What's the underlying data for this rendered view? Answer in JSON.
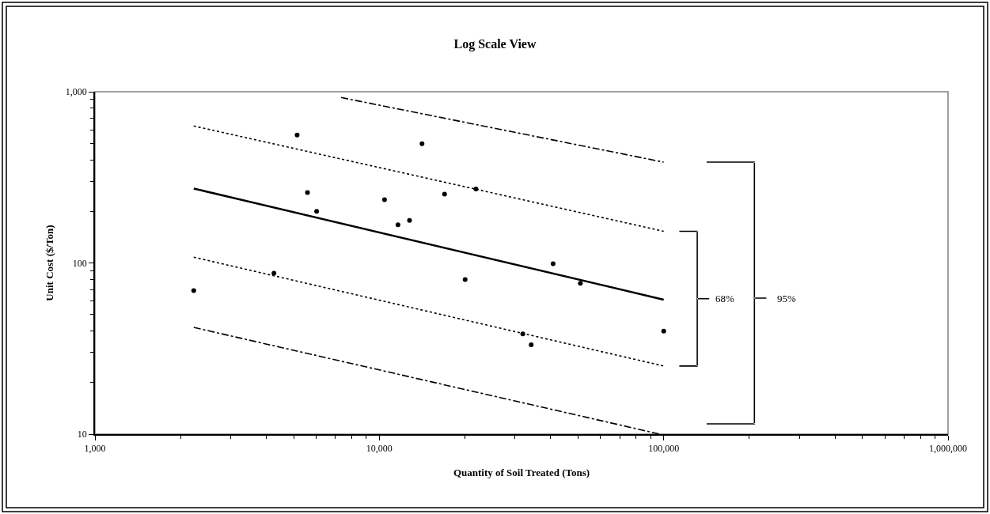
{
  "chart_data": {
    "type": "scatter",
    "title": "Log Scale View",
    "xlabel": "Quantity of Soil Treated (Tons)",
    "ylabel": "Unit Cost ($/Ton)",
    "log": "xy",
    "grid": false,
    "xlim": [
      1000,
      1000000
    ],
    "xticks": [
      {
        "value": 1000,
        "label": "1,000"
      },
      {
        "value": 10000,
        "label": "10,000"
      },
      {
        "value": 100000,
        "label": "100,000"
      },
      {
        "value": 1000000,
        "label": "1,000,000"
      }
    ],
    "ylim": [
      10,
      1000
    ],
    "yticks": [
      10,
      100,
      {
        "value": 1000,
        "label": "1,000"
      }
    ],
    "annotations": [
      "68%",
      "95%"
    ],
    "series": [
      {
        "marker": "circle",
        "color": "#000000",
        "x": [
          2225,
          4260,
          5140,
          5590,
          6020,
          10430,
          11630,
          12770,
          14130,
          16960,
          20030,
          21860,
          31950,
          34210,
          40840,
          50930,
          100000
        ],
        "values": [
          69,
          87,
          559,
          258,
          200,
          234,
          167,
          177,
          497,
          252,
          80,
          270,
          38.5,
          33.3,
          99,
          76,
          40
        ]
      },
      {
        "type": "line",
        "marker": "none",
        "line_style": "solid",
        "color": "#000000",
        "x": [
          2225,
          100000
        ],
        "values": [
          272,
          61
        ]
      },
      {
        "type": "line",
        "marker": "none",
        "line_style": "dotted",
        "color": "#000000",
        "x": [
          2225,
          100000
        ],
        "values": [
          631,
          153
        ]
      },
      {
        "type": "line",
        "marker": "none",
        "line_style": "dotted",
        "color": "#000000",
        "x": [
          2225,
          100000
        ],
        "values": [
          108,
          25
        ]
      },
      {
        "type": "line",
        "marker": "none",
        "line_style": "dashdot",
        "color": "#000000",
        "x": [
          7340,
          100000
        ],
        "values": [
          925,
          388
        ]
      },
      {
        "type": "line",
        "marker": "none",
        "line_style": "dashdot",
        "color": "#000000",
        "x": [
          2225,
          97000
        ],
        "values": [
          42,
          10
        ]
      }
    ]
  }
}
